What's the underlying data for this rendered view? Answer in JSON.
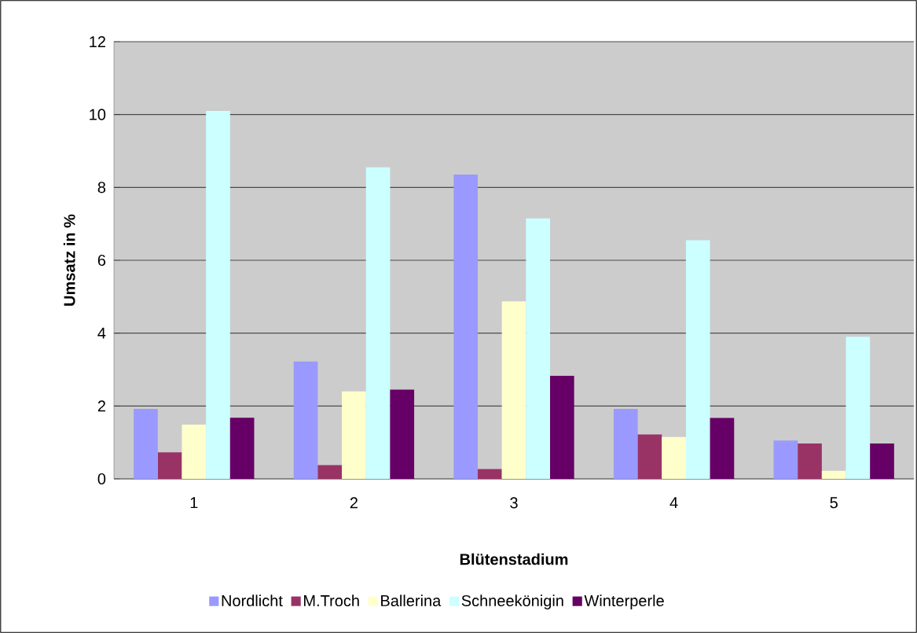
{
  "chart_data": {
    "type": "bar",
    "xlabel": "Blütenstadium",
    "ylabel": "Umsatz in %",
    "categories": [
      "1",
      "2",
      "3",
      "4",
      "5"
    ],
    "series": [
      {
        "name": "Nordlicht",
        "color": "#9999ff",
        "values": [
          1.92,
          3.22,
          8.35,
          1.92,
          1.05
        ]
      },
      {
        "name": "M.Troch",
        "color": "#993366",
        "values": [
          0.73,
          0.38,
          0.27,
          1.22,
          0.97
        ]
      },
      {
        "name": "Ballerina",
        "color": "#ffffcc",
        "values": [
          1.49,
          2.4,
          4.87,
          1.15,
          0.22
        ]
      },
      {
        "name": "Schneekönigin",
        "color": "#ccffff",
        "values": [
          10.1,
          8.55,
          7.15,
          6.55,
          3.9
        ]
      },
      {
        "name": "Winterperle",
        "color": "#660066",
        "values": [
          1.68,
          2.45,
          2.83,
          1.67,
          0.97
        ]
      }
    ],
    "ylim": [
      0,
      12
    ],
    "yticks": [
      0,
      2,
      4,
      6,
      8,
      10,
      12
    ],
    "grid": "y",
    "legend": "bottom"
  }
}
